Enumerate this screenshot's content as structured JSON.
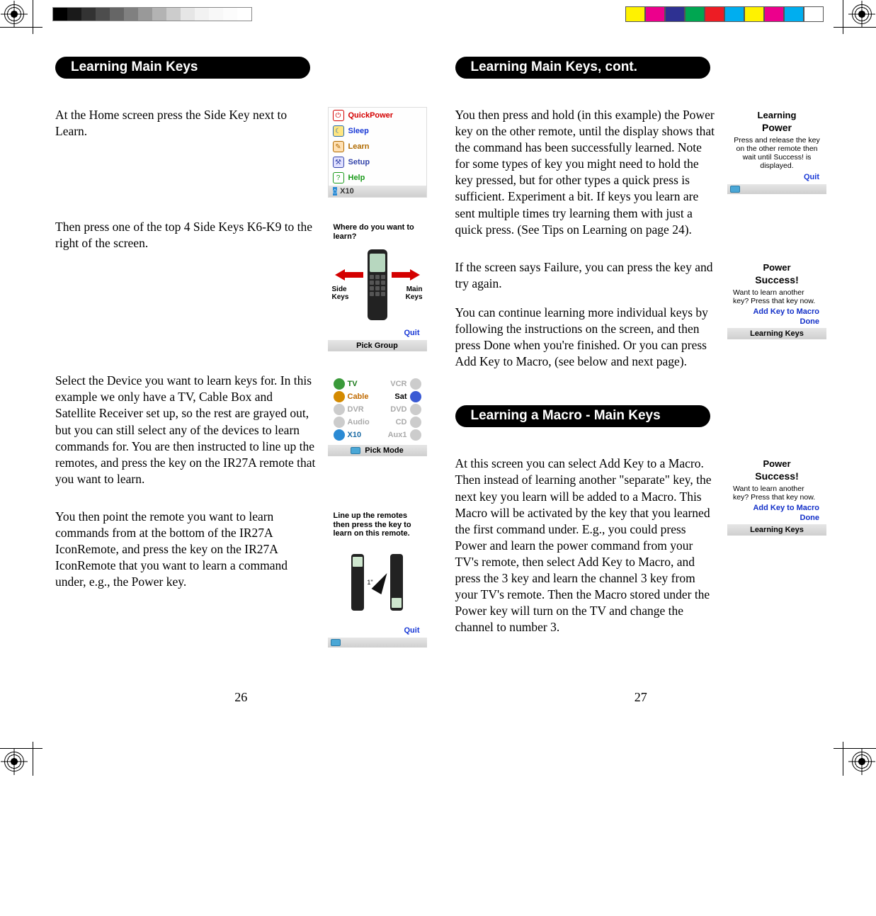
{
  "registration": {
    "gray_ramp_colors": [
      "#000000",
      "#1a1a1a",
      "#333333",
      "#4d4d4d",
      "#666666",
      "#808080",
      "#999999",
      "#b3b3b3",
      "#cccccc",
      "#e6e6e6",
      "#f2f2f2",
      "#f8f8f8",
      "#fcfcfc",
      "#ffffff"
    ],
    "color_chips": [
      "#fff200",
      "#ec008c",
      "#2e3192",
      "#00a651",
      "#ed1c24",
      "#00aeef",
      "#fff200",
      "#ec008c",
      "#00aeef",
      "#ffffff"
    ]
  },
  "left": {
    "heading": "Learning Main Keys",
    "step1": {
      "text": "At the Home screen press the Side Key next to Learn.",
      "menu": {
        "items": [
          {
            "icon_bg": "#ffffff",
            "icon_fg": "#d40000",
            "glyph": "⏻",
            "label": "QuickPower",
            "color": "#d40000"
          },
          {
            "icon_bg": "#ffe680",
            "icon_fg": "#2a6db0",
            "glyph": "☾",
            "label": "Sleep",
            "color": "#1838d6"
          },
          {
            "icon_bg": "#ffe0b3",
            "icon_fg": "#b06a00",
            "glyph": "✎",
            "label": "Learn",
            "color": "#b06a00"
          },
          {
            "icon_bg": "#e0e0ff",
            "icon_fg": "#3344aa",
            "glyph": "⚒",
            "label": "Setup",
            "color": "#3344aa"
          },
          {
            "icon_bg": "#ffffff",
            "icon_fg": "#1a9a1a",
            "glyph": "?",
            "label": "Help",
            "color": "#1a9a1a"
          }
        ],
        "footer": "X10"
      }
    },
    "step2": {
      "text": "Then press one of the top 4 Side Keys K6-K9 to the right of the screen.",
      "title": "Where do you want to learn?",
      "left_label": "Side\nKeys",
      "right_label": "Main\nKeys",
      "quit": "Quit",
      "footer": "Pick Group"
    },
    "step3": {
      "text": "Select the Device you want to learn keys for. In this example we only have a TV, Cable Box and Satellite Receiver set up, so the rest are grayed out, but you can still select any of the devices to learn commands for. You are then instructed to line up the remotes, and press the key on the IR27A remote that you want to learn.",
      "devices": [
        {
          "label": "TV",
          "gray": false,
          "bg": "#3a9a3a",
          "right": false
        },
        {
          "label": "VCR",
          "gray": true,
          "bg": "#cccccc",
          "right": true
        },
        {
          "label": "Cable",
          "gray": false,
          "bg": "#d48a00",
          "right": false
        },
        {
          "label": "Sat",
          "gray": false,
          "bg": "#3a5ad4",
          "right": true
        },
        {
          "label": "DVR",
          "gray": true,
          "bg": "#cccccc",
          "right": false
        },
        {
          "label": "DVD",
          "gray": true,
          "bg": "#cccccc",
          "right": true
        },
        {
          "label": "Audio",
          "gray": true,
          "bg": "#cccccc",
          "right": false
        },
        {
          "label": "CD",
          "gray": true,
          "bg": "#cccccc",
          "right": true
        },
        {
          "label": "X10",
          "gray": false,
          "bg": "#2a8ad4",
          "right": false
        },
        {
          "label": "Aux1",
          "gray": true,
          "bg": "#cccccc",
          "right": true
        }
      ],
      "footer": "Pick Mode"
    },
    "step4": {
      "text": "You then point the remote you want to learn commands from at the bottom of the IR27A IconRemote, and press the key on the IR27A IconRemote that you want to learn a command under, e.g., the Power key.",
      "title": "Line up the remotes then press the key to learn on this remote.",
      "quit": "Quit"
    },
    "page_num": "26"
  },
  "right": {
    "heading1": "Learning Main Keys, cont.",
    "step1": {
      "text": "You then press and hold (in this example) the Power key on the other remote, until the display shows that the command has been successfully learned. Note for some types of key you might need to hold the key pressed, but for other types a quick press is sufficient. Experiment a bit. If keys you learn are sent multiple times try learning them with just a quick press. (See Tips on Learning on page 24).",
      "lcd": {
        "title": "Learning",
        "sub": "Power",
        "body": "Press and release the key on the other remote then wait until Success! is displayed.",
        "quit": "Quit"
      }
    },
    "step2a": "If the screen says Failure, you can press the key and try again.",
    "step2b": "You can continue learning more individual keys by following the instructions on the screen, and then press Done when you're finished. Or you can press Add Key to Macro, (see below and next page).",
    "lcd_success": {
      "title": "Power",
      "sub": "Success!",
      "body": "Want to learn another key? Press that key now.",
      "btn1": "Add Key to Macro",
      "btn2": "Done",
      "footer": "Learning Keys"
    },
    "heading2": "Learning a Macro - Main Keys",
    "step3": {
      "text": "At this screen you can select Add Key to a Macro. Then instead of learning another \"separate\" key, the next key you learn will be added to a Macro. This Macro will be activated by the key that you learned the first command under. E.g., you could press Power and learn the power command from your TV's remote, then select Add Key to Macro, and press the 3 key and learn the channel 3 key from your TV's remote. Then the Macro stored under the Power key will turn on the TV and change the channel to number 3."
    },
    "page_num": "27"
  }
}
